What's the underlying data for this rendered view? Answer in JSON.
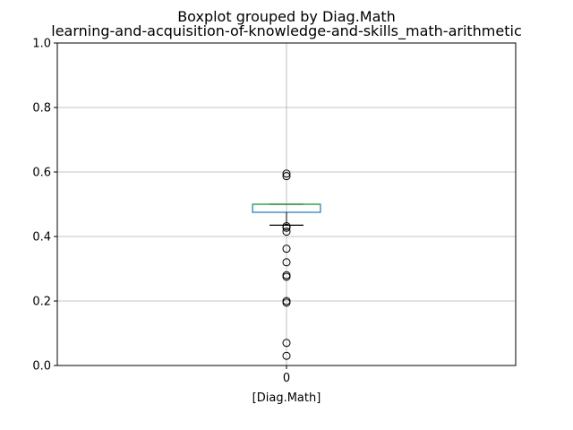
{
  "chart_data": {
    "type": "boxplot",
    "title": "Boxplot grouped by Diag.Math",
    "subtitle": "learning-and-acquisition-of-knowledge-and-skills_math-arithmetic",
    "xlabel": "[Diag.Math]",
    "ylabel": "",
    "categories": [
      "0"
    ],
    "ylim": [
      0,
      1
    ],
    "yticks": [
      "0.0",
      "0.2",
      "0.4",
      "0.6",
      "0.8",
      "1.0"
    ],
    "grid": true,
    "boxes": [
      {
        "category": "0",
        "whisker_low": 0.435,
        "q1": 0.475,
        "median": 0.5,
        "q3": 0.5,
        "whisker_high": 0.5,
        "outliers": [
          0.595,
          0.587,
          0.432,
          0.427,
          0.415,
          0.362,
          0.32,
          0.28,
          0.275,
          0.2,
          0.195,
          0.07,
          0.03
        ]
      }
    ],
    "colors": {
      "box": "#1f77b4",
      "median": "#2ca02c",
      "whisker": "#000000",
      "grid": "#b0b0b0"
    }
  }
}
